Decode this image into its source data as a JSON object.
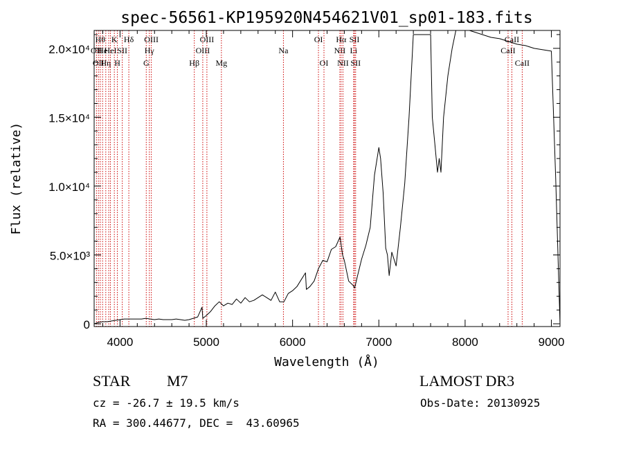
{
  "chart_data": {
    "type": "line",
    "title": "spec-56561-KP195920N454621V01_sp01-183.fits",
    "xlabel": "Wavelength (Å)",
    "ylabel": "Flux (relative)",
    "xlim": [
      3700,
      9100
    ],
    "ylim": [
      -200,
      21300
    ],
    "x_ticks": [
      4000,
      5000,
      6000,
      7000,
      8000,
      9000
    ],
    "x_tick_labels": [
      "4000",
      "5000",
      "6000",
      "7000",
      "8000",
      "9000"
    ],
    "y_ticks": [
      0,
      5000,
      10000,
      15000,
      20000
    ],
    "y_tick_labels": [
      "0",
      "5.0×10³",
      "1.0×10⁴",
      "1.5×10⁴",
      "2.0×10⁴"
    ],
    "grid": false,
    "line_color": "#000000",
    "marker_color": "#cc0000",
    "series": [
      {
        "name": "flux",
        "x": [
          3700,
          3750,
          3800,
          3850,
          3900,
          3950,
          4000,
          4050,
          4100,
          4150,
          4200,
          4250,
          4300,
          4350,
          4400,
          4450,
          4500,
          4550,
          4600,
          4650,
          4700,
          4750,
          4800,
          4850,
          4900,
          4950,
          4960,
          5000,
          5050,
          5100,
          5150,
          5200,
          5250,
          5300,
          5350,
          5400,
          5450,
          5500,
          5550,
          5600,
          5650,
          5700,
          5750,
          5800,
          5850,
          5900,
          5950,
          6000,
          6050,
          6100,
          6150,
          6160,
          6200,
          6250,
          6300,
          6350,
          6400,
          6450,
          6500,
          6550,
          6580,
          6600,
          6650,
          6700,
          6720,
          6750,
          6800,
          6850,
          6900,
          6950,
          7000,
          7020,
          7050,
          7080,
          7100,
          7120,
          7150,
          7200,
          7250,
          7300,
          7350,
          7400,
          7450,
          7500,
          7550,
          7580,
          7600,
          7620,
          7650,
          7680,
          7700,
          7720,
          7750,
          7800,
          7850,
          7900,
          7950,
          8000,
          8050,
          8100,
          8200,
          8300,
          8400,
          8500,
          8550,
          8600,
          8700,
          8800,
          8900,
          9000,
          9050,
          9100
        ],
        "y": [
          0,
          100,
          150,
          150,
          200,
          250,
          300,
          350,
          350,
          350,
          350,
          350,
          400,
          350,
          300,
          350,
          300,
          300,
          300,
          350,
          300,
          250,
          300,
          400,
          500,
          1200,
          400,
          600,
          900,
          1300,
          1600,
          1300,
          1500,
          1400,
          1800,
          1500,
          1900,
          1600,
          1700,
          1900,
          2100,
          1900,
          1700,
          2300,
          1600,
          1600,
          2200,
          2400,
          2700,
          3200,
          3700,
          2500,
          2700,
          3100,
          4000,
          4600,
          4500,
          5400,
          5600,
          6300,
          5000,
          4600,
          3100,
          2800,
          2600,
          3400,
          4700,
          5700,
          7000,
          10800,
          12800,
          12000,
          9500,
          5500,
          5000,
          3500,
          5200,
          4200,
          7000,
          10200,
          15000,
          21000,
          21000,
          21000,
          21000,
          21000,
          21000,
          15000,
          13000,
          11000,
          12000,
          11000,
          15000,
          18000,
          20000,
          21500,
          21300,
          21400,
          21300,
          21200,
          21000,
          20800,
          20700,
          20500,
          20400,
          20300,
          20200,
          20000,
          19900,
          19800,
          10500,
          0
        ]
      }
    ],
    "line_markers": [
      {
        "wavelength": 3727,
        "label": "OII",
        "row": 1
      },
      {
        "wavelength": 3750,
        "label": "OII",
        "row": 2
      },
      {
        "wavelength": 3771,
        "label": "Hθ",
        "row": 0
      },
      {
        "wavelength": 3798,
        "label": "He",
        "row": 1
      },
      {
        "wavelength": 3835,
        "label": "Hη",
        "row": 2
      },
      {
        "wavelength": 3869,
        "label": "",
        "row": 1
      },
      {
        "wavelength": 3889,
        "label": "HeI",
        "row": 1
      },
      {
        "wavelength": 3934,
        "label": "K",
        "row": 0
      },
      {
        "wavelength": 3969,
        "label": "H",
        "row": 2
      },
      {
        "wavelength": 4026,
        "label": "SII",
        "row": 1
      },
      {
        "wavelength": 4102,
        "label": "Hδ",
        "row": 0
      },
      {
        "wavelength": 4304,
        "label": "G",
        "row": 2
      },
      {
        "wavelength": 4340,
        "label": "Hγ",
        "row": 1
      },
      {
        "wavelength": 4363,
        "label": "OIII",
        "row": 0
      },
      {
        "wavelength": 4861,
        "label": "Hβ",
        "row": 2
      },
      {
        "wavelength": 4959,
        "label": "OIII",
        "row": 1
      },
      {
        "wavelength": 5007,
        "label": "OIII",
        "row": 0
      },
      {
        "wavelength": 5175,
        "label": "Mg",
        "row": 2
      },
      {
        "wavelength": 5894,
        "label": "Na",
        "row": 1
      },
      {
        "wavelength": 6300,
        "label": "OI",
        "row": 0
      },
      {
        "wavelength": 6364,
        "label": "OI",
        "row": 2
      },
      {
        "wavelength": 6548,
        "label": "NII",
        "row": 1
      },
      {
        "wavelength": 6563,
        "label": "Hα",
        "row": 0
      },
      {
        "wavelength": 6584,
        "label": "NII",
        "row": 2
      },
      {
        "wavelength": 6708,
        "label": "Li",
        "row": 1
      },
      {
        "wavelength": 6717,
        "label": "SII",
        "row": 0
      },
      {
        "wavelength": 6731,
        "label": "SII",
        "row": 2
      },
      {
        "wavelength": 8498,
        "label": "CaII",
        "row": 1
      },
      {
        "wavelength": 8542,
        "label": "CaII",
        "row": 0
      },
      {
        "wavelength": 8662,
        "label": "CaII",
        "row": 2
      }
    ]
  },
  "info": {
    "class_label": "STAR",
    "subclass": "M7",
    "survey": "LAMOST DR3",
    "redshift": "cz = -26.7 ± 19.5 km/s",
    "obs_date": "Obs-Date: 20130925",
    "coords": "RA = 300.44677, DEC =  43.60965"
  }
}
